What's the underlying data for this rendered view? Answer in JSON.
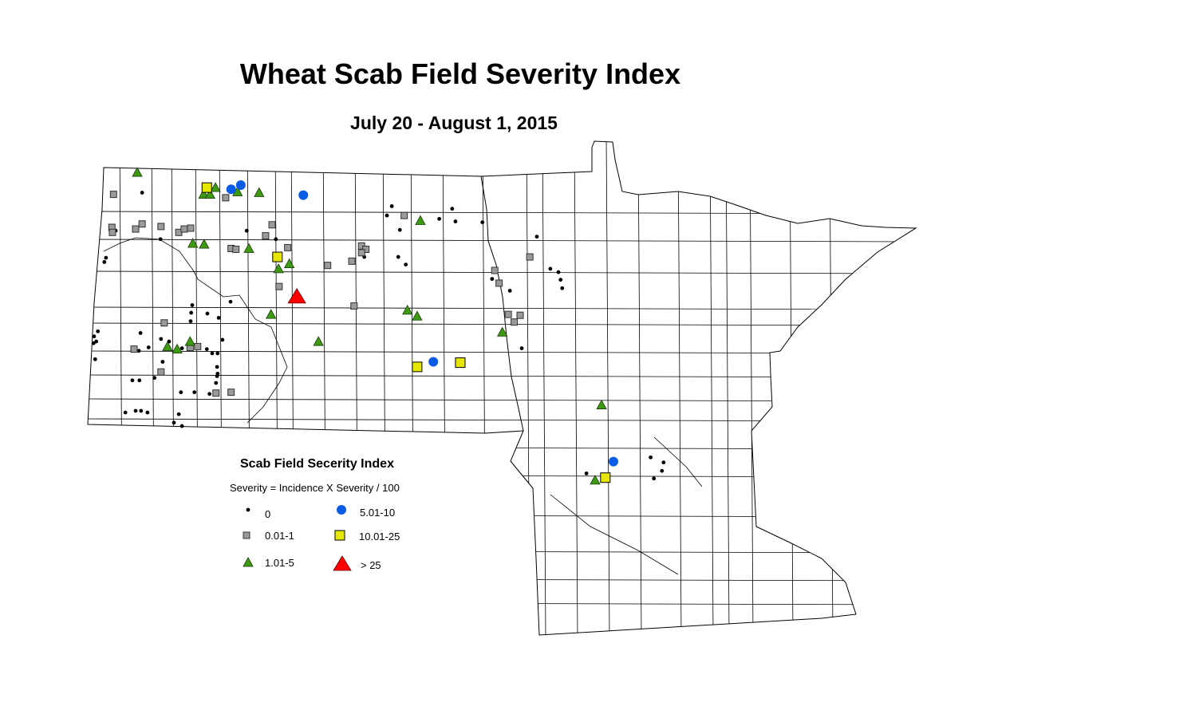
{
  "title": "Wheat Scab Field Severity Index",
  "subtitle": "July 20 - August 1, 2015",
  "legend": {
    "title": "Scab Field Secerity Index",
    "formula": "Severity = Incidence X Severity / 100",
    "classes": [
      {
        "key": "c0",
        "label": "0",
        "symbol": "dot",
        "color": "#000000"
      },
      {
        "key": "c1",
        "label": "0.01-1",
        "symbol": "square-small",
        "color": "#9a9a9a"
      },
      {
        "key": "c2",
        "label": "1.01-5",
        "symbol": "triangle-small",
        "color": "#3c9b12"
      },
      {
        "key": "c3",
        "label": "5.01-10",
        "symbol": "circle",
        "color": "#0a5ce6"
      },
      {
        "key": "c4",
        "label": "10.01-25",
        "symbol": "square-large",
        "color": "#e6e600"
      },
      {
        "key": "c5",
        "label": "> 25",
        "symbol": "triangle-large",
        "color": "#ff0000"
      }
    ]
  },
  "map": {
    "region": "North Dakota and Minnesota counties",
    "points": {
      "c5": [
        [
          -100.32,
          47.52
        ]
      ],
      "c3": [
        [
          -101.54,
          48.79
        ],
        [
          -101.36,
          48.84
        ],
        [
          -100.2,
          48.72
        ],
        [
          -97.79,
          46.75
        ],
        [
          -94.45,
          45.57
        ]
      ],
      "c4": [
        [
          -101.99,
          48.81
        ],
        [
          -100.68,
          47.99
        ],
        [
          -98.09,
          46.69
        ],
        [
          -97.29,
          46.74
        ],
        [
          -94.6,
          45.38
        ]
      ],
      "c2": [
        [
          -103.28,
          48.99
        ],
        [
          -101.83,
          48.81
        ],
        [
          -102.05,
          48.73
        ],
        [
          -101.93,
          48.73
        ],
        [
          -101.42,
          48.76
        ],
        [
          -101.02,
          48.75
        ],
        [
          -102.25,
          48.15
        ],
        [
          -102.04,
          48.14
        ],
        [
          -101.21,
          48.09
        ],
        [
          -100.46,
          47.91
        ],
        [
          -100.66,
          47.85
        ],
        [
          -98.03,
          48.42
        ],
        [
          -98.27,
          47.36
        ],
        [
          -98.09,
          47.29
        ],
        [
          -100.8,
          47.31
        ],
        [
          -99.92,
          46.99
        ],
        [
          -96.51,
          47.1
        ],
        [
          -102.3,
          46.99
        ],
        [
          -102.72,
          46.93
        ],
        [
          -102.54,
          46.9
        ],
        [
          -94.67,
          46.24
        ],
        [
          -94.79,
          45.35
        ]
      ],
      "c1": [
        [
          -103.72,
          48.73
        ],
        [
          -103.75,
          48.34
        ],
        [
          -103.74,
          48.28
        ],
        [
          -103.31,
          48.32
        ],
        [
          -103.19,
          48.38
        ],
        [
          -102.84,
          48.35
        ],
        [
          -102.51,
          48.28
        ],
        [
          -102.41,
          48.32
        ],
        [
          -102.29,
          48.33
        ],
        [
          -101.54,
          48.09
        ],
        [
          -101.45,
          48.08
        ],
        [
          -100.78,
          48.37
        ],
        [
          -100.9,
          48.24
        ],
        [
          -100.49,
          48.1
        ],
        [
          -100.65,
          47.64
        ],
        [
          -101.64,
          48.69
        ],
        [
          -99.75,
          47.89
        ],
        [
          -99.3,
          47.94
        ],
        [
          -99.12,
          48.12
        ],
        [
          -99.04,
          48.08
        ],
        [
          -99.12,
          48.04
        ],
        [
          -98.33,
          48.48
        ],
        [
          -99.26,
          47.41
        ],
        [
          -96.65,
          47.83
        ],
        [
          -96.57,
          47.68
        ],
        [
          -96.4,
          47.31
        ],
        [
          -96.18,
          47.3
        ],
        [
          -96.29,
          47.22
        ],
        [
          -96.0,
          47.99
        ],
        [
          -102.78,
          47.21
        ],
        [
          -103.34,
          46.9
        ],
        [
          -102.16,
          46.93
        ],
        [
          -102.3,
          46.92
        ],
        [
          -102.84,
          46.63
        ],
        [
          -101.82,
          46.38
        ],
        [
          -101.54,
          46.39
        ]
      ],
      "c0": [
        [
          -103.19,
          48.75
        ],
        [
          -103.68,
          48.3
        ],
        [
          -103.86,
          47.98
        ],
        [
          -103.89,
          47.93
        ],
        [
          -102.85,
          48.2
        ],
        [
          -101.25,
          48.3
        ],
        [
          -100.71,
          48.2
        ],
        [
          -98.65,
          48.48
        ],
        [
          -98.56,
          48.59
        ],
        [
          -98.41,
          48.31
        ],
        [
          -97.68,
          48.44
        ],
        [
          -97.44,
          48.56
        ],
        [
          -97.38,
          48.41
        ],
        [
          -96.88,
          48.4
        ],
        [
          -95.87,
          48.23
        ],
        [
          -98.44,
          47.99
        ],
        [
          -99.07,
          47.99
        ],
        [
          -98.3,
          47.9
        ],
        [
          -96.7,
          47.73
        ],
        [
          -96.37,
          47.59
        ],
        [
          -95.62,
          47.85
        ],
        [
          -95.47,
          47.81
        ],
        [
          -95.43,
          47.72
        ],
        [
          -95.4,
          47.62
        ],
        [
          -102.26,
          47.42
        ],
        [
          -102.28,
          47.33
        ],
        [
          -102.29,
          47.23
        ],
        [
          -101.98,
          47.32
        ],
        [
          -101.77,
          47.27
        ],
        [
          -101.55,
          47.46
        ],
        [
          -104.08,
          47.05
        ],
        [
          -104.01,
          47.11
        ],
        [
          -104.09,
          46.97
        ],
        [
          -104.04,
          46.99
        ],
        [
          -104.06,
          46.78
        ],
        [
          -103.22,
          47.09
        ],
        [
          -103.25,
          46.88
        ],
        [
          -103.07,
          46.92
        ],
        [
          -102.84,
          47.02
        ],
        [
          -102.69,
          46.99
        ],
        [
          -102.45,
          46.91
        ],
        [
          -101.99,
          46.9
        ],
        [
          -101.89,
          46.85
        ],
        [
          -101.79,
          46.85
        ],
        [
          -101.7,
          47.01
        ],
        [
          -101.8,
          46.69
        ],
        [
          -101.79,
          46.61
        ],
        [
          -101.8,
          46.58
        ],
        [
          -101.82,
          46.5
        ],
        [
          -102.81,
          46.75
        ],
        [
          -103.37,
          46.53
        ],
        [
          -103.24,
          46.53
        ],
        [
          -102.96,
          46.56
        ],
        [
          -102.47,
          46.39
        ],
        [
          -102.22,
          46.39
        ],
        [
          -101.94,
          46.37
        ],
        [
          -103.5,
          46.15
        ],
        [
          -103.31,
          46.17
        ],
        [
          -103.21,
          46.17
        ],
        [
          -103.09,
          46.15
        ],
        [
          -102.51,
          46.13
        ],
        [
          -102.6,
          46.03
        ],
        [
          -102.45,
          45.99
        ],
        [
          -96.15,
          46.91
        ],
        [
          -93.76,
          45.62
        ],
        [
          -93.52,
          45.56
        ],
        [
          -93.55,
          45.46
        ],
        [
          -93.7,
          45.37
        ],
        [
          -94.95,
          45.43
        ]
      ]
    }
  }
}
